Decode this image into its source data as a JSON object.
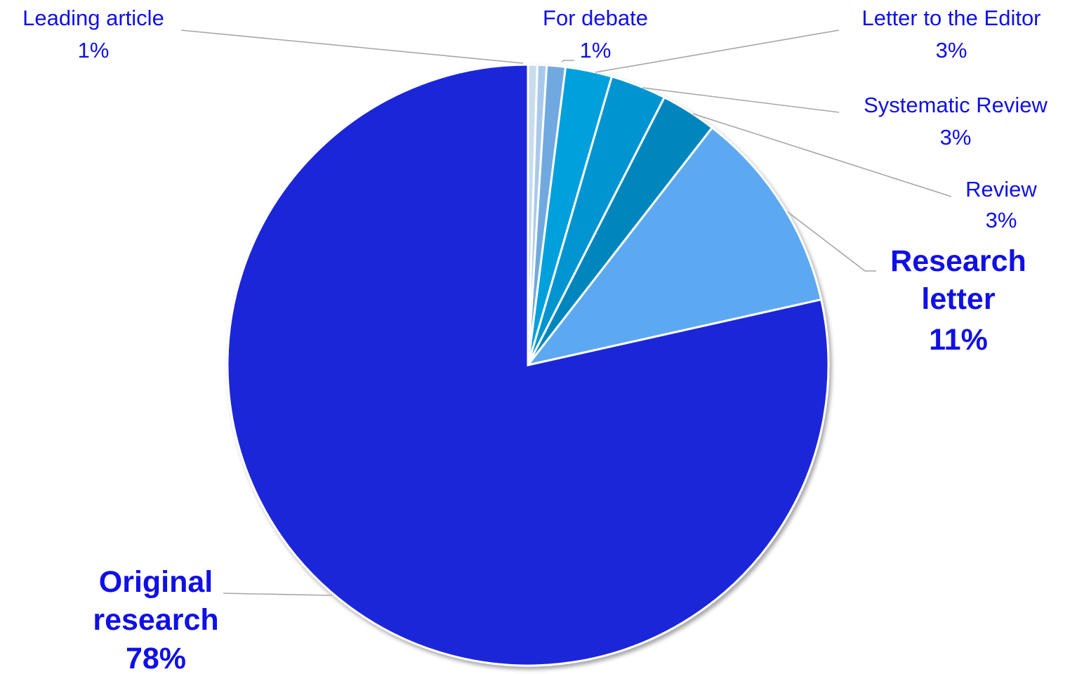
{
  "chart_data": {
    "type": "pie",
    "title": "",
    "slices": [
      {
        "label": "Leading article",
        "pct_label": "1%",
        "value": 0.5,
        "color": "#c9dcee"
      },
      {
        "label": "",
        "pct_label": "",
        "value": 0.5,
        "color": "#a9c9ec"
      },
      {
        "label": "For debate",
        "pct_label": "1%",
        "value": 1,
        "color": "#6fa9df"
      },
      {
        "label": "Letter to the Editor",
        "pct_label": "3%",
        "value": 2.5,
        "color": "#00a0dc"
      },
      {
        "label": "Systematic Review",
        "pct_label": "3%",
        "value": 3,
        "color": "#0095d0"
      },
      {
        "label": "Review",
        "pct_label": "3%",
        "value": 3,
        "color": "#0086bd"
      },
      {
        "label": "Research letter",
        "pct_label": "11%",
        "value": 11,
        "color": "#5ba9f2"
      },
      {
        "label": "Original research",
        "pct_label": "78%",
        "value": 78.5,
        "color": "#1f27d9"
      }
    ],
    "label_color": "#1010e6",
    "leader_color": "#a6a6a6"
  }
}
